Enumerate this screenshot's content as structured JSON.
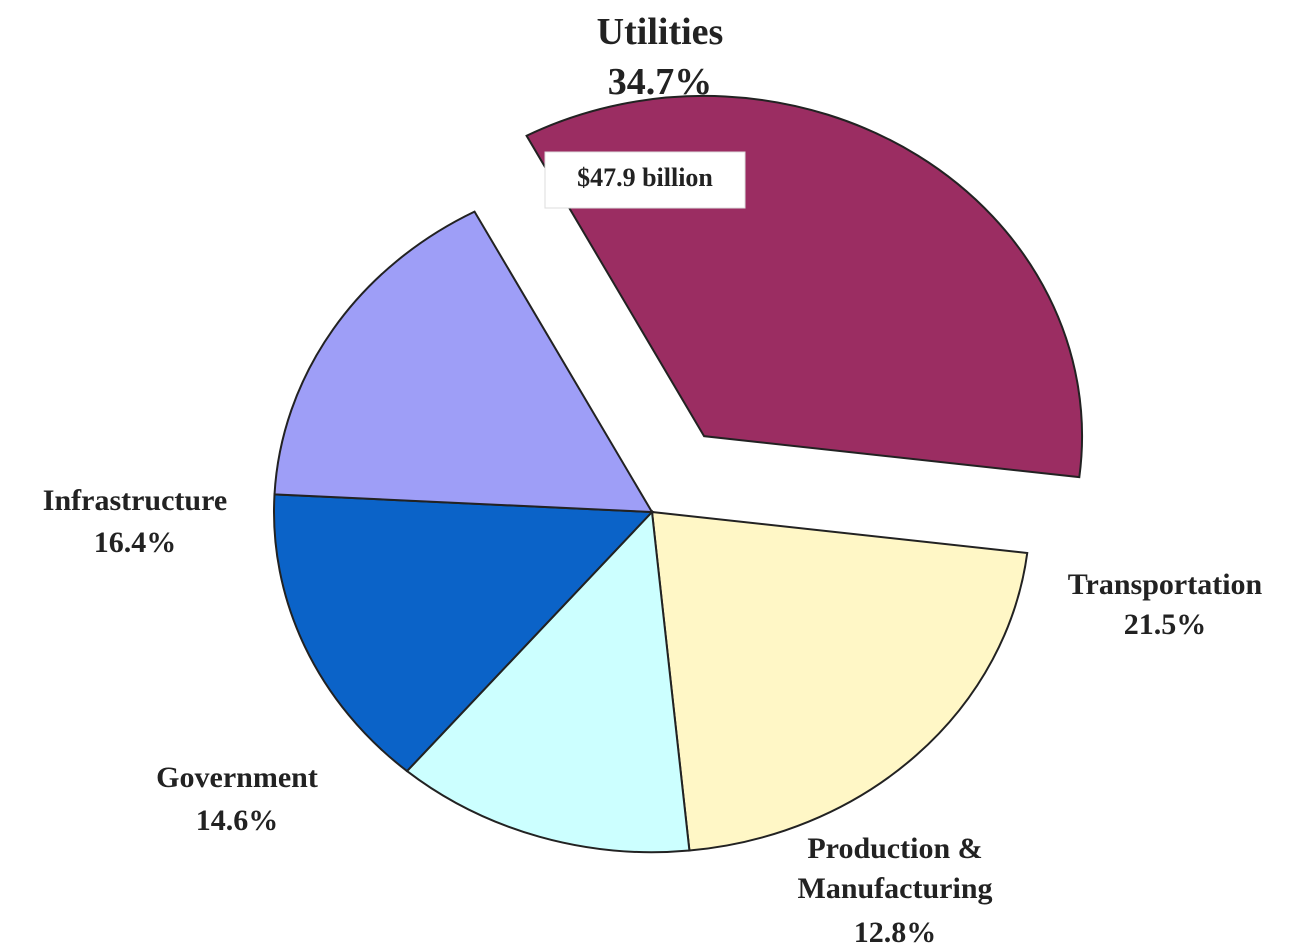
{
  "chart_data": {
    "type": "pie",
    "start_angle_deg": -118,
    "direction": "clockwise",
    "exploded": [
      "Utilities"
    ],
    "slices": [
      {
        "name": "Utilities",
        "percent": 34.7,
        "percent_label": "34.7%",
        "value_label": "$47.9 billion",
        "color": "#9b2d62"
      },
      {
        "name": "Transportation",
        "percent": 21.5,
        "percent_label": "21.5%",
        "color": "#fff7c6"
      },
      {
        "name": "Production & Manufacturing",
        "name_lines": [
          "Production &",
          "Manufacturing"
        ],
        "percent": 12.8,
        "percent_label": "12.8%",
        "color": "#ccffff"
      },
      {
        "name": "Government",
        "percent": 14.6,
        "percent_label": "14.6%",
        "color": "#0b63c8"
      },
      {
        "name": "Infrastructure",
        "percent": 16.4,
        "percent_label": "16.4%",
        "color": "#9e9ef7"
      }
    ]
  }
}
